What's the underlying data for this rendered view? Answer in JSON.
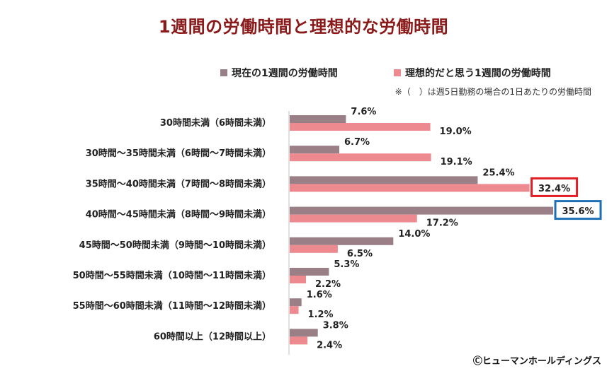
{
  "title": "1週間の労働時間と理想的な労働時間",
  "note": "※（　）は週5日勤務の場合の1日あたりの労働時間",
  "copyright": "Ⓒヒューマンホールディングス",
  "colors": {
    "current": "#9b7f86",
    "ideal": "#ec8a8f",
    "title": "#8b1a1a",
    "highlight_red": "#e31b23",
    "highlight_blue": "#1f6fb5"
  },
  "chart_data": {
    "type": "bar",
    "orientation": "horizontal",
    "title": "1週間の労働時間と理想的な労働時間",
    "legend_position": "top-right",
    "categories": [
      "30時間未満（6時間未満）",
      "30時間〜35時間未満（6時間〜7時間未満）",
      "35時間〜40時間未満（7時間〜8時間未満）",
      "40時間〜45時間未満（8時間〜9時間未満）",
      "45時間〜50時間未満（9時間〜10時間未満）",
      "50時間〜55時間未満（10時間〜11時間未満）",
      "55時間〜60時間未満（11時間〜12時間未満）",
      "60時間以上（12時間以上）"
    ],
    "series": [
      {
        "name": "現在の1週間の労働時間",
        "values": [
          7.6,
          6.7,
          25.4,
          35.6,
          14.0,
          5.3,
          1.6,
          3.8
        ]
      },
      {
        "name": "理想的だと思う1週間の労働時間",
        "values": [
          19.0,
          19.1,
          32.4,
          17.2,
          6.5,
          2.2,
          1.2,
          2.4
        ]
      }
    ],
    "xlim": [
      0,
      36
    ],
    "highlights": [
      {
        "series": 1,
        "index": 2,
        "color": "red"
      },
      {
        "series": 0,
        "index": 3,
        "color": "blue"
      }
    ]
  }
}
